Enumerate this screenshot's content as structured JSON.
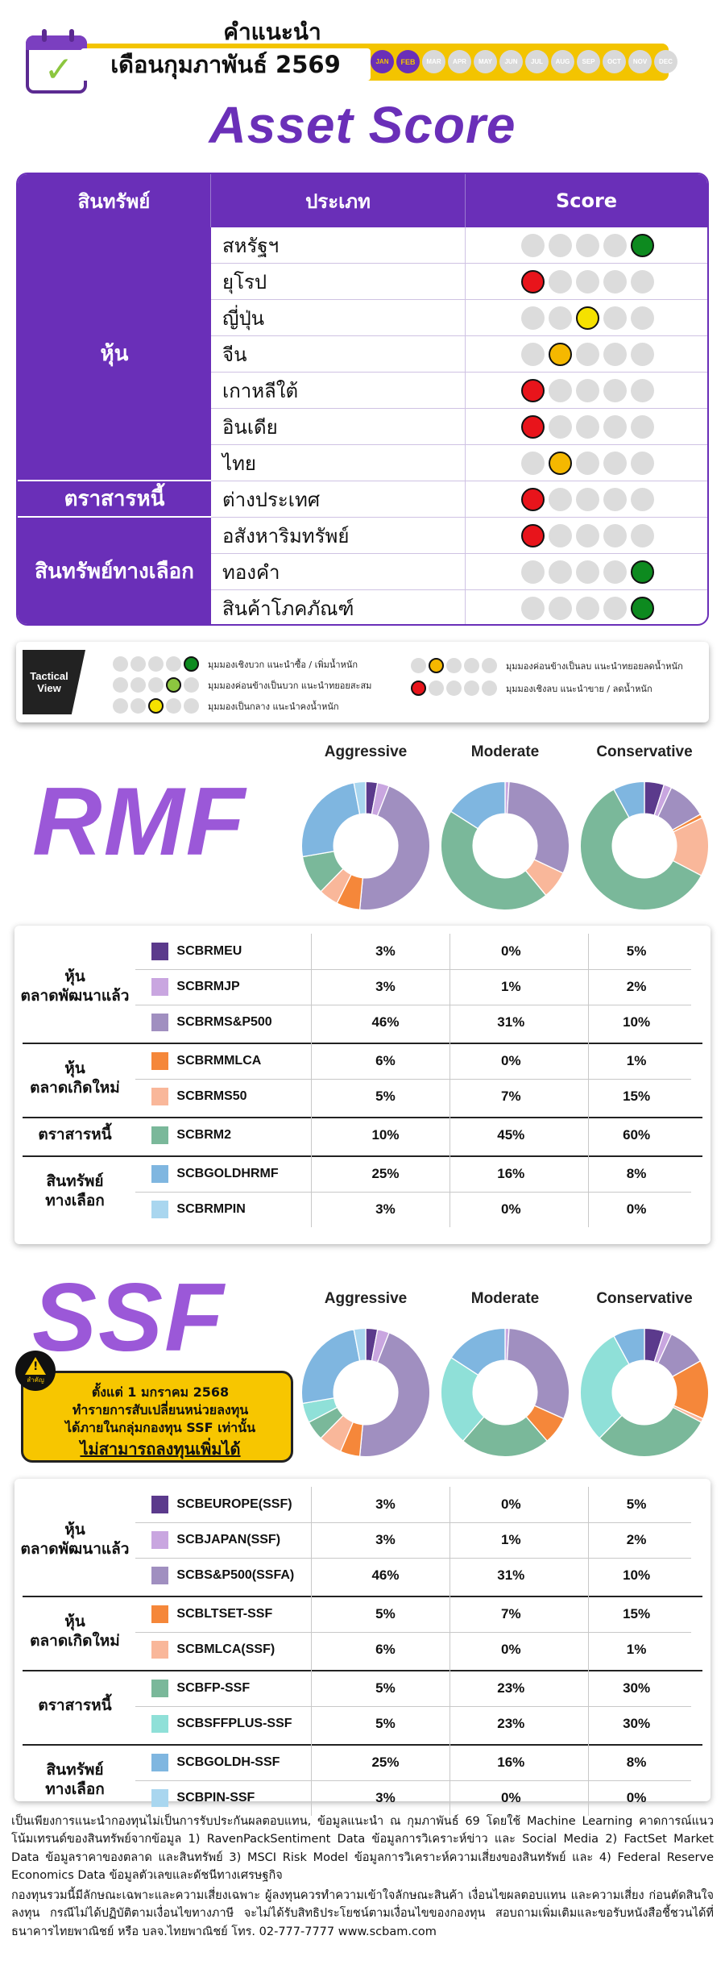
{
  "header": {
    "title_line1": "คำแนะนำ",
    "title_line2": "เดือนกุมภาพันธ์ 2569",
    "months": [
      "JAN",
      "FEB",
      "MAR",
      "APR",
      "MAY",
      "JUN",
      "JUL",
      "AUG",
      "SEP",
      "OCT",
      "NOV",
      "DEC"
    ],
    "active_month": "FEB",
    "past_months": [
      "JAN"
    ]
  },
  "asset_score": {
    "title": "Asset Score",
    "columns": [
      "สินทรัพย์",
      "ประเภท",
      "Score"
    ],
    "groups": [
      {
        "name": "หุ้น",
        "rows": 7
      },
      {
        "name": "ตราสารหนี้",
        "rows": 1
      },
      {
        "name": "สินทรัพย์ทางเลือก",
        "rows": 3
      }
    ],
    "rows": [
      {
        "name": "สหรัฐฯ",
        "score": 5,
        "color": "#0d8a1f"
      },
      {
        "name": "ยุโรป",
        "score": 1,
        "color": "#e8141b"
      },
      {
        "name": "ญี่ปุ่น",
        "score": 3,
        "color": "#f5e100"
      },
      {
        "name": "จีน",
        "score": 2,
        "color": "#f5b800"
      },
      {
        "name": "เกาหลีใต้",
        "score": 1,
        "color": "#e8141b"
      },
      {
        "name": "อินเดีย",
        "score": 1,
        "color": "#e8141b"
      },
      {
        "name": "ไทย",
        "score": 2,
        "color": "#f5b800"
      },
      {
        "name": "ต่างประเทศ",
        "score": 1,
        "color": "#e8141b"
      },
      {
        "name": "อสังหาริมทรัพย์",
        "score": 1,
        "color": "#e8141b"
      },
      {
        "name": "ทองคำ",
        "score": 5,
        "color": "#0d8a1f"
      },
      {
        "name": "สินค้าโภคภัณฑ์",
        "score": 5,
        "color": "#0d8a1f"
      }
    ]
  },
  "tactical_view": {
    "label": "Tactical View",
    "items": [
      {
        "score": 5,
        "color": "#0d8a1f",
        "text": "มุมมองเชิงบวก แนะนำซื้อ / เพิ่มน้ำหนัก"
      },
      {
        "score": 4,
        "color": "#8cc63f",
        "text": "มุมมองค่อนข้างเป็นบวก แนะนำทยอยสะสม"
      },
      {
        "score": 3,
        "color": "#f5e100",
        "text": "มุมมองเป็นกลาง แนะนำคงน้ำหนัก"
      },
      {
        "score": 2,
        "color": "#f5b800",
        "text": "มุมมองค่อนข้างเป็นลบ แนะนำทยอยลดน้ำหนัก"
      },
      {
        "score": 1,
        "color": "#e8141b",
        "text": "มุมมองเชิงลบ แนะนำขาย / ลดน้ำหนัก"
      }
    ]
  },
  "profiles": [
    "Aggressive",
    "Moderate",
    "Conservative"
  ],
  "rmf": {
    "title": "RMF",
    "groups": [
      {
        "name": "หุ้น\nตลาดพัฒนาแล้ว",
        "rows": 3
      },
      {
        "name": "หุ้น\nตลาดเกิดใหม่",
        "rows": 2
      },
      {
        "name": "ตราสารหนี้",
        "rows": 1
      },
      {
        "name": "สินทรัพย์\nทางเลือก",
        "rows": 2
      }
    ],
    "funds": [
      {
        "code": "SCBRMEU",
        "color": "#5b3a8c",
        "values": [
          "3%",
          "0%",
          "5%"
        ]
      },
      {
        "code": "SCBRMJP",
        "color": "#c9a6e0",
        "values": [
          "3%",
          "1%",
          "2%"
        ]
      },
      {
        "code": "SCBRMS&P500",
        "color": "#a08fc0",
        "values": [
          "46%",
          "31%",
          "10%"
        ]
      },
      {
        "code": "SCBRMMLCA",
        "color": "#f5873a",
        "values": [
          "6%",
          "0%",
          "1%"
        ]
      },
      {
        "code": "SCBRMS50",
        "color": "#f9b79a",
        "values": [
          "5%",
          "7%",
          "15%"
        ]
      },
      {
        "code": "SCBRM2",
        "color": "#7ab89a",
        "values": [
          "10%",
          "45%",
          "60%"
        ]
      },
      {
        "code": "SCBGOLDHRMF",
        "color": "#7fb6e0",
        "values": [
          "25%",
          "16%",
          "8%"
        ]
      },
      {
        "code": "SCBRMPIN",
        "color": "#a9d6ef",
        "values": [
          "3%",
          "0%",
          "0%"
        ]
      }
    ]
  },
  "ssf": {
    "title": "SSF",
    "notice": {
      "badge": "สำคัญ",
      "line1": "ตั้งแต่ 1 มกราคม 2568",
      "line2": "ทำรายการสับเปลี่ยนหน่วยลงทุน",
      "line3": "ได้ภายในกลุ่มกองทุน SSF เท่านั้น",
      "line4": "ไม่สามารถลงทุนเพิ่มได้"
    },
    "groups": [
      {
        "name": "หุ้น\nตลาดพัฒนาแล้ว",
        "rows": 3
      },
      {
        "name": "หุ้น\nตลาดเกิดใหม่",
        "rows": 2
      },
      {
        "name": "ตราสารหนี้",
        "rows": 2
      },
      {
        "name": "สินทรัพย์\nทางเลือก",
        "rows": 2
      }
    ],
    "funds": [
      {
        "code": "SCBEUROPE(SSF)",
        "color": "#5b3a8c",
        "values": [
          "3%",
          "0%",
          "5%"
        ]
      },
      {
        "code": "SCBJAPAN(SSF)",
        "color": "#c9a6e0",
        "values": [
          "3%",
          "1%",
          "2%"
        ]
      },
      {
        "code": "SCBS&P500(SSFA)",
        "color": "#a08fc0",
        "values": [
          "46%",
          "31%",
          "10%"
        ]
      },
      {
        "code": "SCBLTSET-SSF",
        "color": "#f5873a",
        "values": [
          "5%",
          "7%",
          "15%"
        ]
      },
      {
        "code": "SCBMLCA(SSF)",
        "color": "#f9b79a",
        "values": [
          "6%",
          "0%",
          "1%"
        ]
      },
      {
        "code": "SCBFP-SSF",
        "color": "#7ab89a",
        "values": [
          "5%",
          "23%",
          "30%"
        ]
      },
      {
        "code": "SCBSFFPLUS-SSF",
        "color": "#8fe0d8",
        "values": [
          "5%",
          "23%",
          "30%"
        ]
      },
      {
        "code": "SCBGOLDH-SSF",
        "color": "#7fb6e0",
        "values": [
          "25%",
          "16%",
          "8%"
        ]
      },
      {
        "code": "SCBPIN-SSF",
        "color": "#a9d6ef",
        "values": [
          "3%",
          "0%",
          "0%"
        ]
      }
    ]
  },
  "footer": {
    "para1": "เป็นเพียงการแนะนำกองทุนไม่เป็นการรับประกันผลตอบแทน, ข้อมูลแนะนำ ณ กุมภาพันธ์ 69 โดยใช้ Machine Learning คาดการณ์แนวโน้มเทรนด์ของสินทรัพย์จากข้อมูล 1) RavenPackSentiment Data ข้อมูลการวิเคราะห์ข่าว และ Social Media 2) FactSet Market Data ข้อมูลราคาของตลาด และสินทรัพย์ 3) MSCI Risk Model ข้อมูลการวิเคราะห์ความเสี่ยงของสินทรัพย์ และ 4) Federal Reserve Economics Data ข้อมูลตัวเลขและดัชนีทางเศรษฐกิจ",
    "para2": "กองทุนรวมนี้มีลักษณะเฉพาะและความเสี่ยงเฉพาะ ผู้ลงทุนควรทำความเข้าใจลักษณะสินค้า เงื่อนไขผลตอบแทน และความเสี่ยง ก่อนตัดสินใจลงทุน กรณีไม่ได้ปฏิบัติตามเงื่อนไขทางภาษี จะไม่ได้รับสิทธิประโยชน์ตามเงื่อนไขของกองทุน สอบถามเพิ่มเติมและขอรับหนังสือชี้ชวนได้ที่ธนาคารไทยพาณิชย์ หรือ บลจ.ไทยพาณิชย์ โทร. 02-777-7777 www.scbam.com"
  }
}
